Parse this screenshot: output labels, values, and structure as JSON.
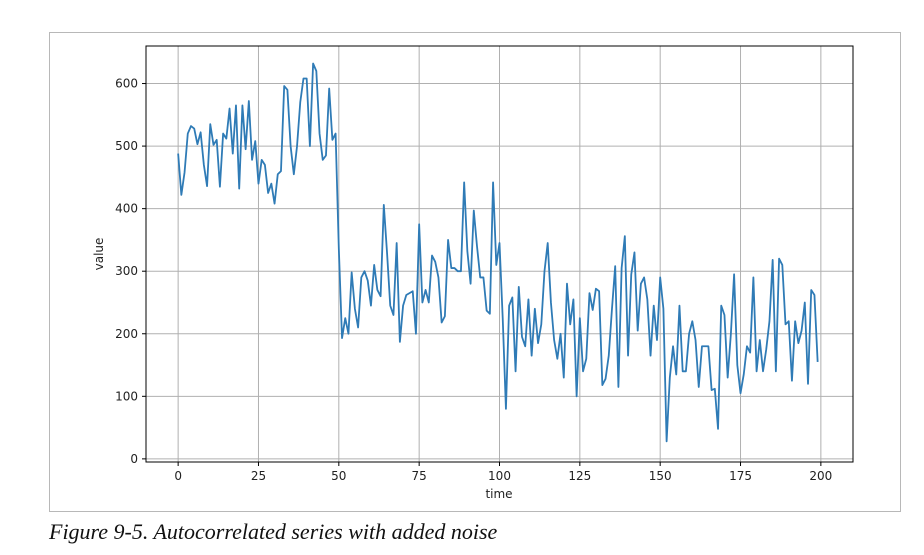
{
  "caption": "Figure 9-5. Autocorrelated series with added noise",
  "chart_data": {
    "type": "line",
    "xlabel": "time",
    "ylabel": "value",
    "xlim": [
      -10,
      210
    ],
    "ylim": [
      -5,
      660
    ],
    "xticks": [
      0,
      25,
      50,
      75,
      100,
      125,
      150,
      175,
      200
    ],
    "yticks": [
      0,
      100,
      200,
      300,
      400,
      500,
      600
    ],
    "grid": true,
    "line_color": "#2f7bb6",
    "series": [
      {
        "values": [
          488,
          422,
          458,
          520,
          532,
          528,
          503,
          522,
          470,
          436,
          535,
          502,
          510,
          435,
          520,
          512,
          560,
          488,
          565,
          432,
          565,
          495,
          572,
          478,
          508,
          440,
          478,
          470,
          425,
          440,
          408,
          455,
          460,
          596,
          590,
          500,
          455,
          500,
          570,
          608,
          608,
          500,
          632,
          620,
          520,
          478,
          485,
          592,
          510,
          520,
          336,
          193,
          225,
          200,
          298,
          240,
          210,
          290,
          300,
          285,
          245,
          310,
          270,
          260,
          406,
          330,
          245,
          230,
          345,
          187,
          245,
          262,
          265,
          268,
          200,
          375,
          250,
          270,
          250,
          325,
          315,
          290,
          218,
          228,
          350,
          305,
          305,
          300,
          300,
          442,
          332,
          280,
          397,
          340,
          290,
          290,
          237,
          232,
          442,
          310,
          345,
          225,
          80,
          245,
          258,
          140,
          275,
          195,
          180,
          255,
          165,
          240,
          185,
          215,
          300,
          345,
          250,
          190,
          160,
          200,
          130,
          280,
          215,
          255,
          100,
          225,
          140,
          160,
          265,
          238,
          272,
          268,
          118,
          128,
          165,
          240,
          308,
          115,
          305,
          356,
          165,
          295,
          330,
          205,
          280,
          290,
          255,
          165,
          245,
          190,
          290,
          240,
          28,
          130,
          180,
          135,
          245,
          140,
          140,
          200,
          220,
          190,
          115,
          180,
          180,
          180,
          110,
          112,
          48,
          245,
          230,
          130,
          200,
          295,
          150,
          105,
          135,
          180,
          170,
          290,
          140,
          190,
          140,
          175,
          220,
          318,
          140,
          320,
          310,
          215,
          220,
          125,
          220,
          185,
          205,
          250,
          120,
          270,
          262,
          155
        ],
        "x_start": 0,
        "x_step": 1
      }
    ]
  }
}
